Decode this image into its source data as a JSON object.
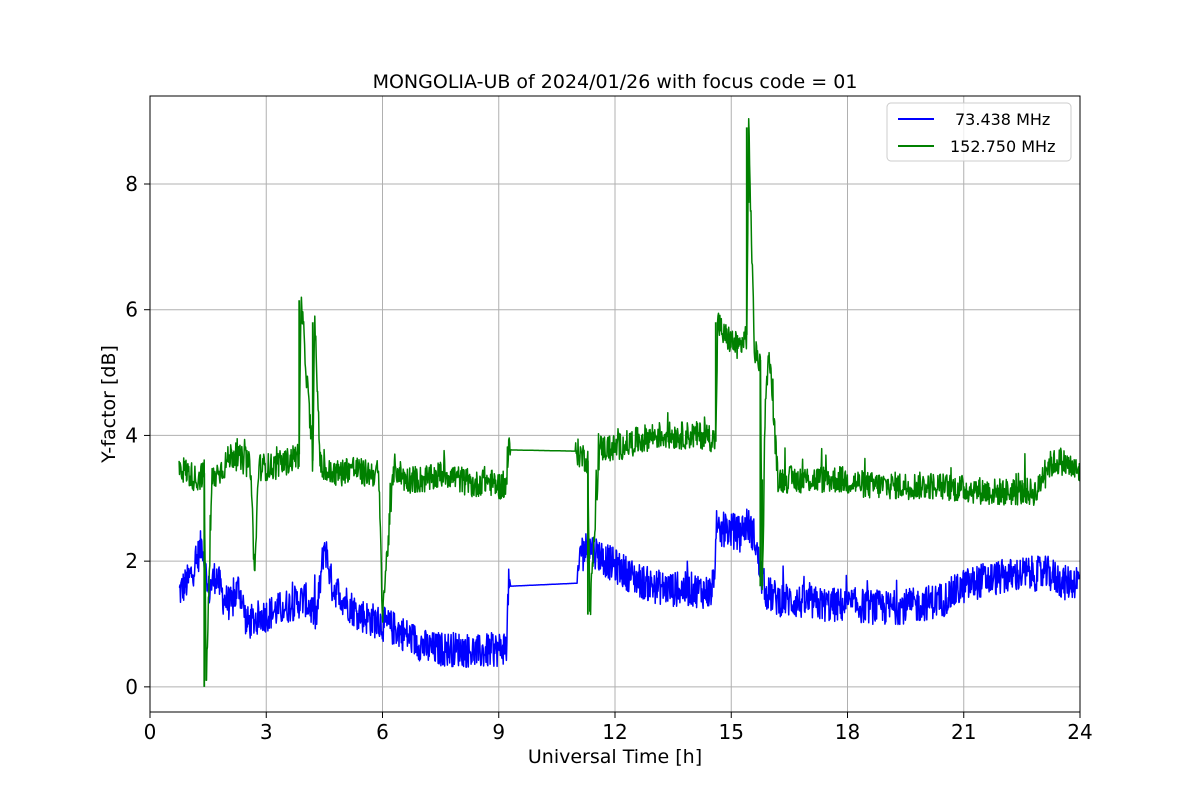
{
  "chart_data": {
    "type": "line",
    "title": "MONGOLIA-UB of 2024/01/26 with focus code = 01",
    "xlabel": "Universal Time [h]",
    "ylabel": "Y-factor [dB]",
    "xlim": [
      0,
      24
    ],
    "ylim": [
      -0.4,
      9.4
    ],
    "xticks": [
      0,
      3,
      6,
      9,
      12,
      15,
      18,
      21,
      24
    ],
    "yticks": [
      0,
      2,
      4,
      6,
      8
    ],
    "grid": true,
    "legend_position": "top-right",
    "series": [
      {
        "name": "73.438 MHz",
        "color": "#0000ff",
        "x": [
          0.75,
          1.0,
          1.2,
          1.35,
          1.5,
          1.7,
          1.9,
          2.1,
          2.3,
          2.5,
          2.8,
          3.2,
          3.6,
          4.0,
          4.3,
          4.5,
          4.7,
          5.0,
          5.3,
          5.6,
          6.0,
          6.4,
          6.8,
          7.2,
          7.6,
          8.0,
          8.5,
          9.0,
          9.2,
          9.25,
          11.05,
          11.1,
          11.4,
          11.8,
          12.2,
          12.6,
          13.0,
          13.5,
          14.0,
          14.5,
          14.65,
          14.8,
          15.0,
          15.2,
          15.4,
          15.6,
          15.75,
          15.9,
          16.2,
          16.8,
          17.5,
          18.2,
          19.0,
          19.8,
          20.5,
          21.0,
          21.5,
          22.0,
          22.6,
          23.2,
          23.6,
          24.0
        ],
        "values": [
          1.5,
          1.7,
          2.0,
          2.3,
          1.5,
          1.8,
          1.4,
          1.3,
          1.6,
          1.0,
          1.1,
          1.2,
          1.3,
          1.4,
          1.1,
          2.3,
          1.6,
          1.4,
          1.2,
          1.1,
          1.0,
          0.9,
          0.75,
          0.6,
          0.6,
          0.6,
          0.55,
          0.6,
          0.65,
          1.6,
          1.65,
          2.2,
          2.2,
          2.0,
          1.85,
          1.7,
          1.6,
          1.55,
          1.55,
          1.5,
          2.4,
          2.5,
          2.5,
          2.45,
          2.6,
          2.4,
          1.8,
          1.5,
          1.4,
          1.35,
          1.3,
          1.3,
          1.25,
          1.3,
          1.4,
          1.6,
          1.7,
          1.75,
          1.8,
          1.8,
          1.65,
          1.7
        ]
      },
      {
        "name": "152.750 MHz",
        "color": "#008000",
        "x": [
          0.75,
          1.0,
          1.2,
          1.4,
          1.45,
          1.6,
          1.9,
          2.1,
          2.4,
          2.6,
          2.7,
          2.8,
          3.2,
          3.6,
          3.85,
          3.9,
          4.2,
          4.25,
          4.4,
          4.6,
          4.9,
          5.2,
          5.5,
          5.9,
          6.0,
          6.3,
          6.6,
          6.9,
          7.2,
          7.6,
          8.0,
          8.4,
          8.6,
          9.0,
          9.2,
          9.25,
          11.0,
          11.1,
          11.3,
          11.35,
          11.6,
          12.0,
          12.5,
          13.0,
          13.5,
          14.0,
          14.4,
          14.6,
          14.65,
          14.8,
          15.0,
          15.2,
          15.4,
          15.45,
          15.6,
          15.75,
          15.8,
          15.9,
          16.0,
          16.2,
          17.0,
          17.8,
          18.6,
          19.4,
          20.2,
          21.0,
          21.8,
          22.4,
          22.9,
          23.1,
          23.5,
          24.0
        ],
        "values": [
          3.5,
          3.4,
          3.3,
          3.4,
          0.0,
          3.3,
          3.5,
          3.7,
          3.6,
          3.5,
          1.7,
          3.5,
          3.5,
          3.6,
          3.7,
          6.15,
          3.6,
          5.8,
          3.5,
          3.4,
          3.4,
          3.5,
          3.4,
          3.4,
          1.2,
          3.5,
          3.3,
          3.3,
          3.3,
          3.4,
          3.3,
          3.2,
          3.3,
          3.2,
          3.2,
          3.77,
          3.75,
          3.7,
          3.6,
          1.15,
          3.8,
          3.8,
          3.9,
          4.0,
          4.0,
          4.0,
          4.0,
          3.9,
          5.8,
          5.6,
          5.5,
          5.4,
          5.6,
          8.9,
          5.3,
          5.2,
          1.6,
          5.0,
          5.2,
          3.3,
          3.3,
          3.3,
          3.2,
          3.2,
          3.2,
          3.15,
          3.1,
          3.1,
          3.1,
          3.5,
          3.6,
          3.4
        ]
      }
    ]
  }
}
